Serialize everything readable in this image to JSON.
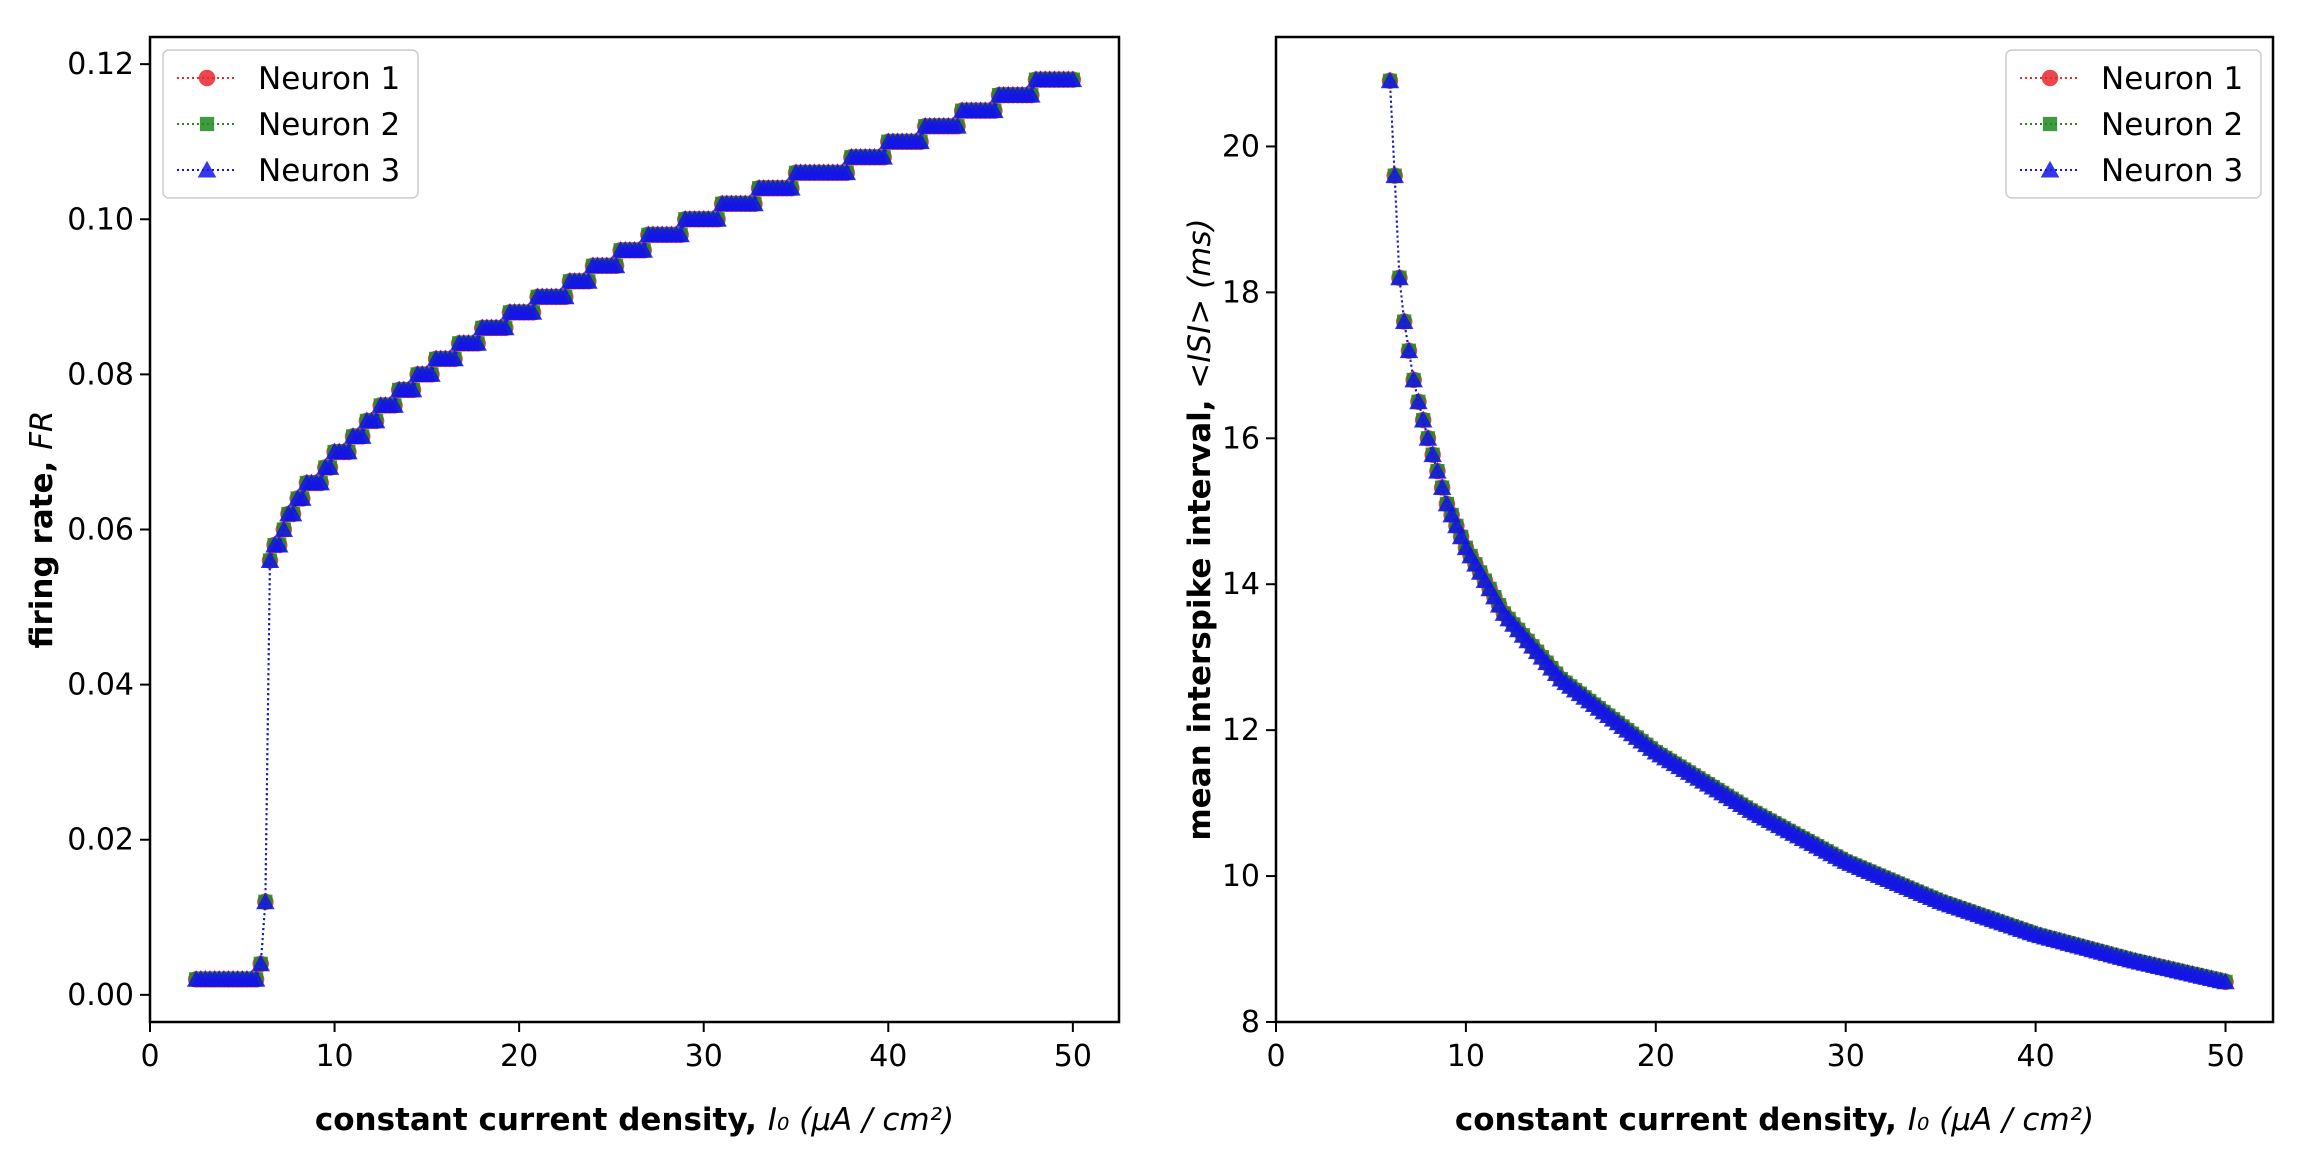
{
  "colors": {
    "neuron1": "#e8262b",
    "neuron2": "#1f8a1f",
    "neuron3": "#1414e6",
    "axes": "#000000"
  },
  "chart_data": [
    {
      "type": "line",
      "ylabel_bold": "firing rate, ",
      "ylabel_math": "FR",
      "xlabel_bold": "constant current density, ",
      "xlabel_math": "I₀ (μA / cm²)",
      "xlim": [
        0,
        52.5
      ],
      "ylim": [
        -0.0035,
        0.1235
      ],
      "xticks": [
        0,
        10,
        20,
        30,
        40,
        50
      ],
      "xtick_labels": [
        "0",
        "10",
        "20",
        "30",
        "40",
        "50"
      ],
      "yticks": [
        0.0,
        0.02,
        0.04,
        0.06,
        0.08,
        0.1,
        0.12
      ],
      "ytick_labels": [
        "0.00",
        "0.02",
        "0.04",
        "0.06",
        "0.08",
        "0.10",
        "0.12"
      ],
      "legend_position": "top-left",
      "series": [
        {
          "name": "Neuron 1",
          "marker": "circle",
          "color": "#e8262b"
        },
        {
          "name": "Neuron 2",
          "marker": "square",
          "color": "#1f8a1f"
        },
        {
          "name": "Neuron 3",
          "marker": "triangle",
          "color": "#1414e6"
        }
      ],
      "x_range": [
        2.5,
        50
      ],
      "x_step": 0.25,
      "data": {
        "x": [
          2.5,
          5.75,
          6.0,
          6.25,
          6.5,
          7.0,
          7.5,
          8.0,
          9.0,
          10.0,
          12.0,
          14.0,
          16.0,
          18.0,
          20.0,
          22.0,
          24.0,
          26.0,
          28.0,
          30.0,
          32.0,
          34.0,
          36.0,
          38.0,
          40.0,
          42.0,
          44.0,
          46.0,
          48.0,
          50.0
        ],
        "y": [
          0.002,
          0.002,
          0.004,
          0.012,
          0.056,
          0.058,
          0.061,
          0.064,
          0.066,
          0.069,
          0.074,
          0.078,
          0.082,
          0.085,
          0.088,
          0.09,
          0.093,
          0.096,
          0.098,
          0.1,
          0.102,
          0.104,
          0.106,
          0.107,
          0.109,
          0.111,
          0.113,
          0.115,
          0.117,
          0.118
        ]
      }
    },
    {
      "type": "line",
      "ylabel_bold": "mean interspike interval, ",
      "ylabel_math": "<ISI> (ms)",
      "xlabel_bold": "constant current density, ",
      "xlabel_math": "I₀ (μA / cm²)",
      "xlim": [
        0,
        52.5
      ],
      "ylim": [
        8.0,
        21.5
      ],
      "xticks": [
        0,
        10,
        20,
        30,
        40,
        50
      ],
      "xtick_labels": [
        "0",
        "10",
        "20",
        "30",
        "40",
        "50"
      ],
      "yticks": [
        8,
        10,
        12,
        14,
        16,
        18,
        20
      ],
      "ytick_labels": [
        "8",
        "10",
        "12",
        "14",
        "16",
        "18",
        "20"
      ],
      "legend_position": "top-right",
      "series": [
        {
          "name": "Neuron 1",
          "marker": "circle",
          "color": "#e8262b"
        },
        {
          "name": "Neuron 2",
          "marker": "square",
          "color": "#1f8a1f"
        },
        {
          "name": "Neuron 3",
          "marker": "triangle",
          "color": "#1414e6"
        }
      ],
      "x_range": [
        6.0,
        50
      ],
      "x_step": 0.25,
      "data": {
        "x": [
          6.0,
          6.25,
          6.5,
          6.75,
          7.0,
          7.25,
          7.5,
          8.0,
          9.0,
          10.0,
          12.0,
          15.0,
          20.0,
          25.0,
          30.0,
          35.0,
          40.0,
          45.0,
          50.0
        ],
        "y": [
          20.9,
          19.6,
          18.2,
          17.6,
          17.2,
          16.8,
          16.5,
          16.0,
          15.1,
          14.5,
          13.6,
          12.7,
          11.7,
          10.9,
          10.2,
          9.65,
          9.2,
          8.85,
          8.55
        ]
      }
    }
  ]
}
